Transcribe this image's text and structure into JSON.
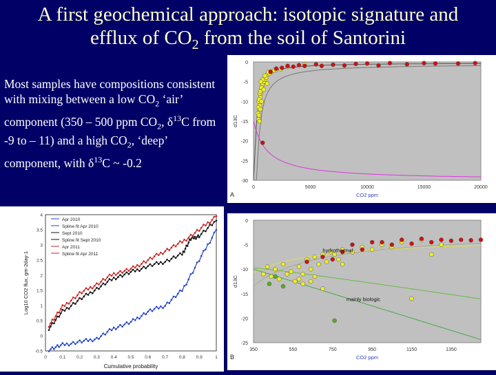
{
  "slide": {
    "title_part1": "A first geochemical approach: isotopic signature and",
    "title_part2": "efflux of CO",
    "title_sub": "2",
    "title_part3": " from the soil of Santorini",
    "body": {
      "t1": "Most samples have compositions consistent with mixing between a low CO",
      "s1": "2",
      "t2": " ‘air’ component (350 – 500 ppm CO",
      "s2": "2",
      "t3": ", δ",
      "p1": "13",
      "t4": "C from -9 to – 11) and a high CO",
      "s3": "2",
      "t5": ", ‘deep’ component, with δ",
      "p2": "13",
      "t6": "C ~ -0.2"
    }
  },
  "colors": {
    "background": "#000066",
    "title": "#ffffcc",
    "body_text": "#ffffff",
    "plot_bg": "#c0c0c0",
    "point_red": "#cc1111",
    "point_yellow": "#eeee22",
    "point_green": "#55aa22",
    "curve_magenta": "#dd33dd"
  },
  "chart_data": [
    {
      "type": "scatter",
      "panel_label": "A",
      "xlabel": "CO2 ppm",
      "ylabel": "d13C",
      "xlim": [
        0,
        20000
      ],
      "ylim": [
        -30,
        0
      ],
      "xticks": [
        "0",
        "5000",
        "10000",
        "15000",
        "20000"
      ],
      "yticks": [
        "0",
        "-5",
        "-10",
        "-15",
        "-20",
        "-25",
        "-30"
      ],
      "yellow_points": [
        [
          400,
          -13
        ],
        [
          450,
          -14.5
        ],
        [
          500,
          -12
        ],
        [
          550,
          -11
        ],
        [
          600,
          -9
        ],
        [
          650,
          -8
        ],
        [
          700,
          -7
        ],
        [
          750,
          -6
        ],
        [
          800,
          -5.5
        ],
        [
          900,
          -5
        ],
        [
          1000,
          -4.5
        ],
        [
          1100,
          -4
        ],
        [
          1200,
          -3.2
        ],
        [
          1400,
          -3
        ],
        [
          1600,
          -2.5
        ],
        [
          1800,
          -2.2
        ],
        [
          2000,
          -2
        ],
        [
          2400,
          -1.8
        ],
        [
          450,
          -10
        ],
        [
          500,
          -9.5
        ],
        [
          550,
          -8
        ],
        [
          600,
          -7.5
        ],
        [
          700,
          -6.5
        ],
        [
          800,
          -4.5
        ],
        [
          1000,
          -3.5
        ],
        [
          1300,
          -2.6
        ],
        [
          3000,
          -1.2
        ],
        [
          4500,
          -0.6
        ],
        [
          420,
          -11.5
        ],
        [
          480,
          -13.5
        ],
        [
          520,
          -15
        ],
        [
          600,
          -12
        ],
        [
          700,
          -10
        ],
        [
          900,
          -7
        ],
        [
          650,
          -5
        ],
        [
          1200,
          -5.5
        ]
      ],
      "red_points": [
        [
          800,
          -20.5
        ],
        [
          1500,
          -2.5
        ],
        [
          2000,
          -1.7
        ],
        [
          2500,
          -1.5
        ],
        [
          3000,
          -1
        ],
        [
          3500,
          -1.2
        ],
        [
          4000,
          -0.8
        ],
        [
          4500,
          -1
        ],
        [
          5500,
          -0.6
        ],
        [
          6000,
          -1
        ],
        [
          7000,
          -0.7
        ],
        [
          8000,
          -0.9
        ],
        [
          9000,
          -0.5
        ],
        [
          10000,
          -0.4
        ],
        [
          11000,
          -0.9
        ],
        [
          12000,
          -0.3
        ],
        [
          13500,
          -0.6
        ],
        [
          15000,
          -0.3
        ],
        [
          16000,
          -0.4
        ],
        [
          18000,
          -0.4
        ],
        [
          19500,
          -0.3
        ]
      ],
      "curves": [
        "upper mixing curve",
        "lower mixing curve"
      ]
    },
    {
      "type": "scatter",
      "panel_label": "B",
      "xlabel": "CO2 ppm",
      "ylabel": "d13C",
      "xlim": [
        350,
        1500
      ],
      "ylim": [
        -25,
        0
      ],
      "xticks": [
        "350",
        "550",
        "750",
        "950",
        "1150",
        "1350"
      ],
      "yticks": [
        "0",
        "-5",
        "-10",
        "-15",
        "-20",
        "-25"
      ],
      "annotations": [
        "hydrothermal",
        "mainly biologic"
      ],
      "yellow_points": [
        [
          400,
          -11
        ],
        [
          420,
          -9.5
        ],
        [
          440,
          -11.5
        ],
        [
          460,
          -10
        ],
        [
          480,
          -12
        ],
        [
          500,
          -9
        ],
        [
          520,
          -11
        ],
        [
          540,
          -10.5
        ],
        [
          560,
          -12.5
        ],
        [
          580,
          -9.5
        ],
        [
          600,
          -11
        ],
        [
          620,
          -8
        ],
        [
          640,
          -10
        ],
        [
          660,
          -7.5
        ],
        [
          680,
          -9
        ],
        [
          700,
          -7
        ],
        [
          720,
          -8.5
        ],
        [
          740,
          -6.5
        ],
        [
          760,
          -7
        ],
        [
          780,
          -8
        ],
        [
          800,
          -6
        ],
        [
          850,
          -6.5
        ],
        [
          900,
          -5.5
        ],
        [
          950,
          -6
        ],
        [
          1000,
          -5
        ],
        [
          1050,
          -5.5
        ],
        [
          1100,
          -4.5
        ],
        [
          1150,
          -16
        ],
        [
          700,
          -14
        ],
        [
          640,
          -12.5
        ],
        [
          580,
          -12
        ],
        [
          600,
          -13
        ],
        [
          660,
          -11.5
        ],
        [
          800,
          -9
        ],
        [
          1200,
          -4
        ],
        [
          1250,
          -7
        ],
        [
          1300,
          -5
        ]
      ],
      "red_points": [
        [
          620,
          -8.5
        ],
        [
          700,
          -7.5
        ],
        [
          750,
          -8
        ],
        [
          800,
          -6.5
        ],
        [
          850,
          -5
        ],
        [
          900,
          -6
        ],
        [
          950,
          -4.5
        ],
        [
          1000,
          -4.5
        ],
        [
          1050,
          -5
        ],
        [
          1100,
          -4
        ],
        [
          1150,
          -4.8
        ],
        [
          1200,
          -3.8
        ],
        [
          1250,
          -4.5
        ],
        [
          1300,
          -4
        ],
        [
          1350,
          -4.2
        ],
        [
          1400,
          -4
        ],
        [
          1450,
          -4.1
        ],
        [
          1500,
          -4
        ]
      ],
      "green_points": [
        [
          430,
          -13
        ],
        [
          460,
          -11.5
        ],
        [
          500,
          -13.5
        ],
        [
          760,
          -20.5
        ]
      ],
      "curves": [
        "upper hydrothermal",
        "lower hydrothermal",
        "upper biologic",
        "lower biologic"
      ]
    },
    {
      "type": "line",
      "xlabel": "Cumulative probability",
      "ylabel": "Log10 CO2 flux, gm-2day-1",
      "xlim": [
        0,
        1
      ],
      "ylim": [
        -0.5,
        4
      ],
      "xticks": [
        "0",
        "0.1",
        "0.2",
        "0.3",
        "0.4",
        "0.5",
        "0.6",
        "0.7",
        "0.8",
        "0.9",
        "1"
      ],
      "yticks": [
        "-0.5",
        "0",
        "0.5",
        "1",
        "1.5",
        "2",
        "2.5",
        "3",
        "3.5",
        "4"
      ],
      "series": [
        {
          "name": "Apr 2010",
          "color": "#2244cc",
          "points": [
            [
              0.02,
              -0.45
            ],
            [
              0.1,
              -0.3
            ],
            [
              0.2,
              -0.2
            ],
            [
              0.3,
              -0.1
            ],
            [
              0.4,
              0.25
            ],
            [
              0.5,
              0.45
            ],
            [
              0.6,
              0.8
            ],
            [
              0.7,
              1.0
            ],
            [
              0.8,
              1.5
            ],
            [
              0.9,
              2.5
            ],
            [
              1.0,
              3.5
            ]
          ]
        },
        {
          "name": "Spline fit Apr 2010",
          "color": "#2244cc",
          "points": []
        },
        {
          "name": "Sept 2010",
          "color": "#111111",
          "points": [
            [
              0.02,
              0.25
            ],
            [
              0.1,
              0.8
            ],
            [
              0.2,
              1.2
            ],
            [
              0.3,
              1.55
            ],
            [
              0.4,
              1.9
            ],
            [
              0.5,
              2.1
            ],
            [
              0.6,
              2.3
            ],
            [
              0.7,
              2.45
            ],
            [
              0.8,
              2.7
            ],
            [
              0.85,
              3.2
            ],
            [
              0.9,
              3.3
            ],
            [
              1.0,
              3.8
            ]
          ]
        },
        {
          "name": "Spline fit Sept 2010",
          "color": "#111111",
          "points": []
        },
        {
          "name": "Apr 2011",
          "color": "#cc2222",
          "points": [
            [
              0.02,
              0.35
            ],
            [
              0.1,
              0.95
            ],
            [
              0.2,
              1.4
            ],
            [
              0.3,
              1.7
            ],
            [
              0.4,
              2.05
            ],
            [
              0.5,
              2.2
            ],
            [
              0.6,
              2.5
            ],
            [
              0.7,
              2.8
            ],
            [
              0.8,
              3.1
            ],
            [
              0.9,
              3.5
            ],
            [
              1.0,
              3.95
            ]
          ]
        },
        {
          "name": "Spline fit Apr 2011",
          "color": "#cc2222",
          "points": []
        }
      ]
    }
  ]
}
